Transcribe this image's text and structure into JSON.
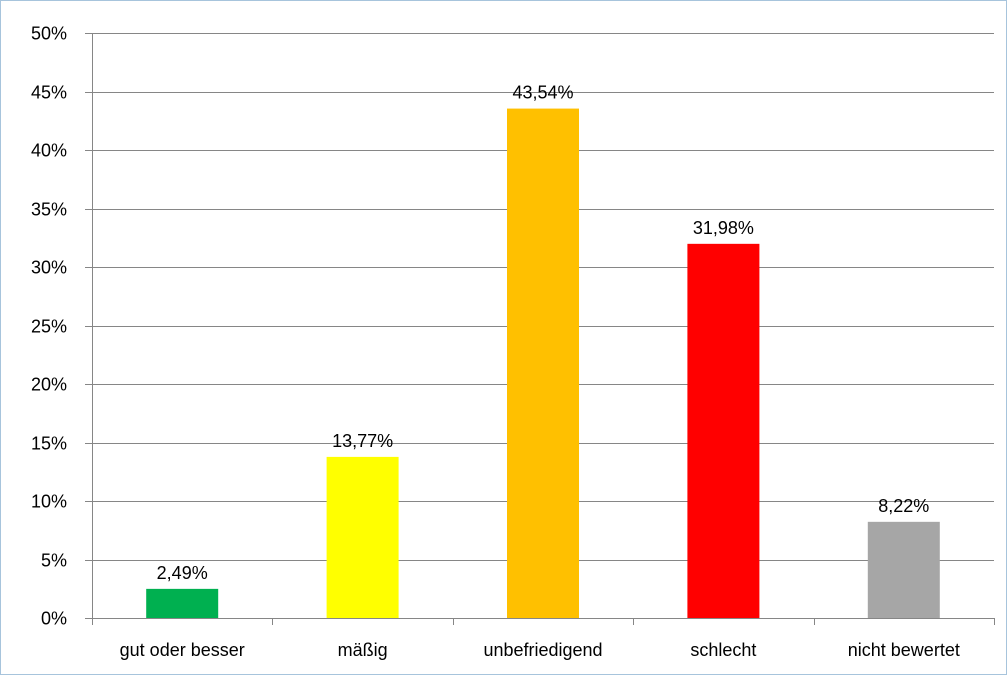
{
  "chart_data": {
    "type": "bar",
    "title": "",
    "xlabel": "",
    "ylabel": "",
    "categories": [
      "gut oder besser",
      "mäßig",
      "unbefriedigend",
      "schlecht",
      "nicht bewertet"
    ],
    "values": [
      2.49,
      13.77,
      43.54,
      31.98,
      8.22
    ],
    "data_labels": [
      "2,49%",
      "13,77%",
      "43,54%",
      "31,98%",
      "8,22%"
    ],
    "colors": [
      "#00b050",
      "#ffff00",
      "#ffc000",
      "#ff0000",
      "#a6a6a6"
    ],
    "ylim": [
      0,
      50
    ],
    "yticks": [
      0,
      5,
      10,
      15,
      20,
      25,
      30,
      35,
      40,
      45,
      50
    ],
    "ytick_labels": [
      "0%",
      "5%",
      "10%",
      "15%",
      "20%",
      "25%",
      "30%",
      "35%",
      "40%",
      "45%",
      "50%"
    ],
    "grid": true,
    "legend": "none"
  }
}
